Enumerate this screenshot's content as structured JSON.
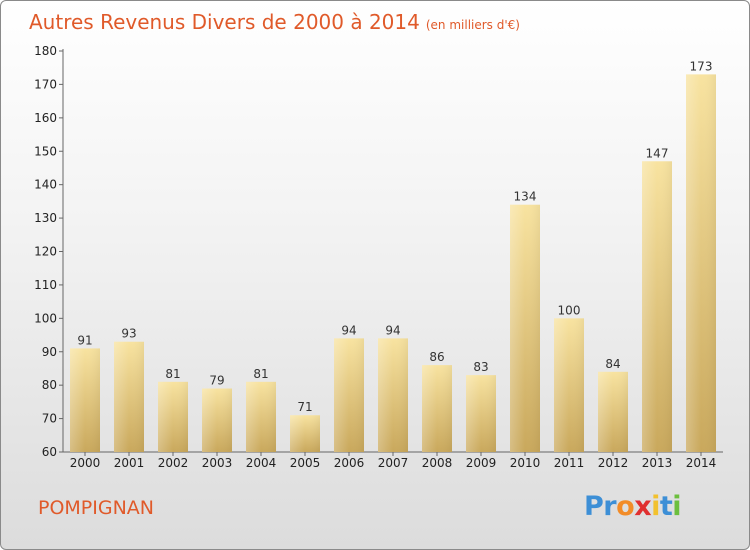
{
  "title": "Autres Revenus Divers de 2000 à 2014",
  "subtitle": "(en milliers d'€)",
  "commune": "POMPIGNAN",
  "logo": {
    "text": "Proxiti",
    "letters": [
      {
        "ch": "P",
        "color": "#3d8fd6"
      },
      {
        "ch": "r",
        "color": "#3d8fd6"
      },
      {
        "ch": "o",
        "color": "#f28c28"
      },
      {
        "ch": "x",
        "color": "#e03030"
      },
      {
        "ch": "i",
        "color": "#f2c12e"
      },
      {
        "ch": "t",
        "color": "#3d8fd6"
      },
      {
        "ch": "i",
        "color": "#6cbf3e"
      }
    ]
  },
  "colors": {
    "title": "#e05a2a",
    "bar_light": "#f8e3a0",
    "bar_dark": "#c9a85c"
  },
  "chart_data": {
    "type": "bar",
    "categories": [
      "2000",
      "2001",
      "2002",
      "2003",
      "2004",
      "2005",
      "2006",
      "2007",
      "2008",
      "2009",
      "2010",
      "2011",
      "2012",
      "2013",
      "2014"
    ],
    "values": [
      91,
      93,
      81,
      79,
      81,
      71,
      94,
      94,
      86,
      83,
      134,
      100,
      84,
      147,
      173
    ],
    "ylim": [
      60,
      180
    ],
    "yticks": [
      60,
      70,
      80,
      90,
      100,
      110,
      120,
      130,
      140,
      150,
      160,
      170,
      180
    ],
    "grid": false,
    "data_labels": true
  }
}
